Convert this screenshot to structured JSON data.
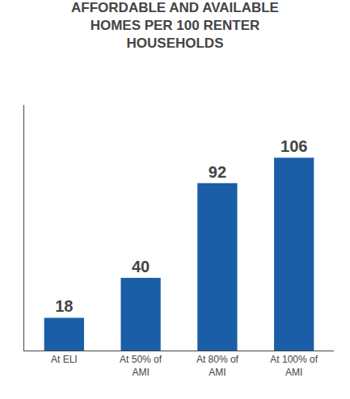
{
  "chart_data": {
    "type": "bar",
    "title": "AFFORDABLE AND AVAILABLE\nHOMES PER 100 RENTER\nHOUSEHOLDS",
    "categories": [
      "At ELI",
      "At 50% of\nAMI",
      "At 80% of\nAMI",
      "At 100% of\nAMI"
    ],
    "values": [
      18,
      40,
      92,
      106
    ],
    "color": "#1A5EA8",
    "ylim": [
      0,
      135
    ],
    "grid": false,
    "data_labels": true,
    "tick_labels": "x"
  }
}
